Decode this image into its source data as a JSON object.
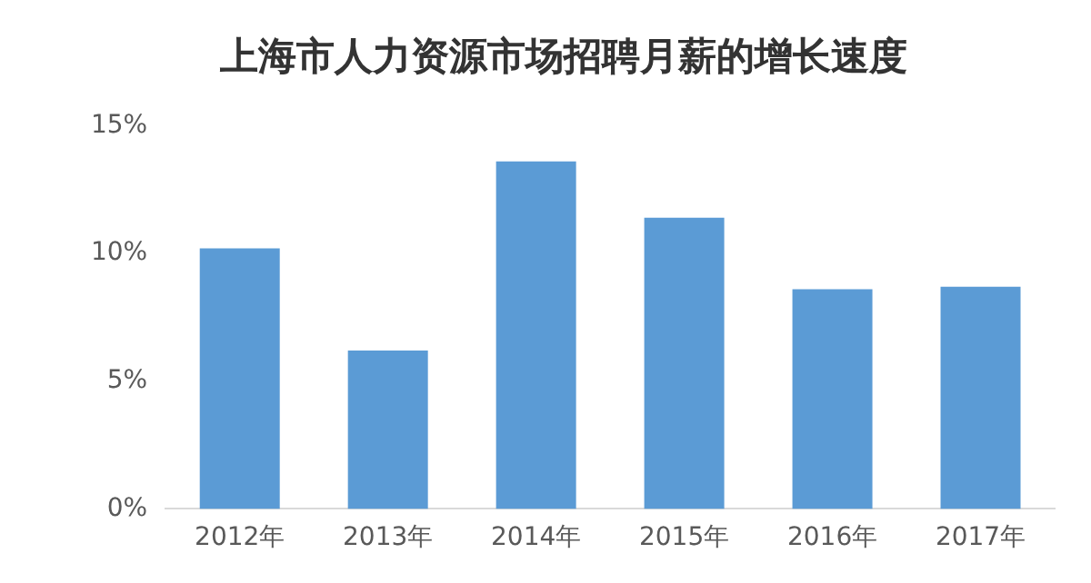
{
  "chart_data": {
    "type": "bar",
    "title": "上海市人力资源市场招聘月薪的增长速度",
    "categories": [
      "2012年",
      "2013年",
      "2014年",
      "2015年",
      "2016年",
      "2017年"
    ],
    "values": [
      10.2,
      6.2,
      13.6,
      11.4,
      8.6,
      8.7
    ],
    "color": "#5b9bd5",
    "ylim": [
      0,
      15
    ],
    "yticks": [
      {
        "value": 0,
        "label": "0%"
      },
      {
        "value": 5,
        "label": "5%"
      },
      {
        "value": 10,
        "label": "10%"
      },
      {
        "value": 15,
        "label": "15%"
      }
    ],
    "grid": false,
    "legend": false
  }
}
